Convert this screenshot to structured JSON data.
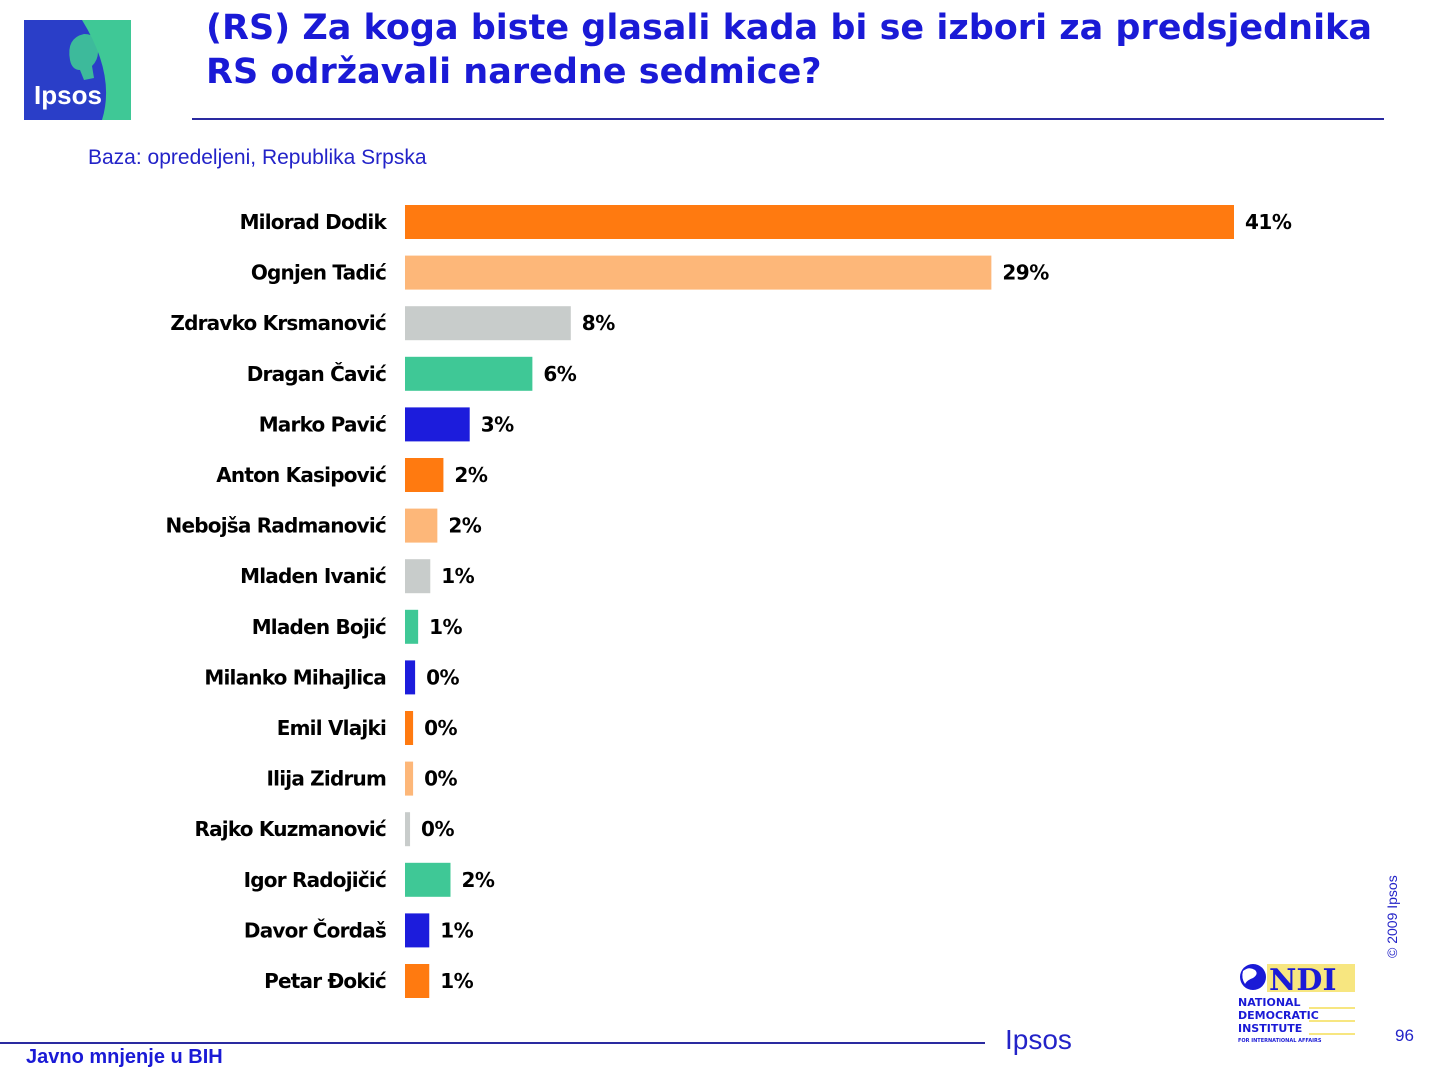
{
  "header": {
    "title": "(RS) Za koga biste glasali kada bi se izbori za predsjednika RS održavali naredne sedmice?",
    "subtitle": "Baza: opredeljeni, Republika Srpska",
    "logo_text": "Ipsos"
  },
  "chart_data": {
    "type": "bar",
    "orientation": "horizontal",
    "title": "(RS) Za koga biste glasali kada bi se izbori za predsjednika RS održavali naredne sedmice?",
    "subtitle": "Baza: opredeljeni, Republika Srpska",
    "xlabel": "",
    "ylabel": "",
    "xlim": [
      0,
      41
    ],
    "grid": false,
    "legend": "none",
    "categories": [
      "Milorad Dodik",
      "Ognjen Tadić",
      "Zdravko Krsmanović",
      "Dragan Čavić",
      "Marko Pavić",
      "Anton Kasipović",
      "Nebojša Radmanović",
      "Mladen Ivanić",
      "Mladen Bojić",
      "Milanko Mihajlica",
      "Emil Vlajki",
      "Ilija Zidrum",
      "Rajko Kuzmanović",
      "Igor Radojičić",
      "Davor Čordaš",
      "Petar Đokić"
    ],
    "values": [
      41,
      29,
      8,
      6,
      3,
      2,
      2,
      1,
      1,
      0,
      0,
      0,
      0,
      2,
      1,
      1
    ],
    "value_labels": [
      "41%",
      "29%",
      "8%",
      "6%",
      "3%",
      "2%",
      "2%",
      "1%",
      "1%",
      "0%",
      "0%",
      "0%",
      "0%",
      "2%",
      "1%",
      "1%"
    ],
    "bar_widths": [
      41,
      29,
      8.2,
      6.3,
      3.2,
      1.9,
      1.6,
      1.25,
      0.65,
      0.5,
      0.4,
      0.4,
      0.25,
      2.25,
      1.2,
      1.2
    ],
    "colors": [
      "#ff7a10",
      "#fdb779",
      "#c8cccb",
      "#3fc896",
      "#1c1cdc",
      "#ff7a10",
      "#fdb779",
      "#c8cccb",
      "#3fc896",
      "#1c1cdc",
      "#ff7a10",
      "#fdb779",
      "#c8cccb",
      "#3fc896",
      "#1c1cdc",
      "#ff7a10"
    ]
  },
  "footer": {
    "text": "Javno mnjenje u BIH",
    "brand": "Ipsos",
    "copyright": "© 2009 Ipsos",
    "page_number": "96",
    "ndi_text": [
      "NDI",
      "NATIONAL",
      "DEMOCRATIC",
      "INSTITUTE",
      "FOR INTERNATIONAL AFFAIRS"
    ]
  },
  "colors": {
    "brand_blue": "#1a1ad6",
    "logo_blue": "#2a3ec8",
    "logo_green": "#3fc896"
  }
}
